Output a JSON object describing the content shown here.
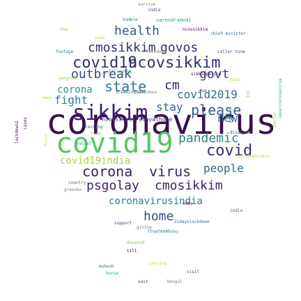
{
  "cloud": {
    "big": [
      {
        "t": "coronavirus",
        "c": "#3b0f4f"
      },
      {
        "t": "covid19",
        "c": "#56c667"
      },
      {
        "t": "sikkim",
        "c": "#3e1e6e"
      },
      {
        "t": "ncovsikkim",
        "c": "#31326f"
      },
      {
        "t": "covid19",
        "c": "#31326f"
      },
      {
        "t": "cmosikkim",
        "c": "#2f2f6b"
      },
      {
        "t": "govos",
        "c": "#3a2a72"
      },
      {
        "t": "health",
        "c": "#33588c"
      },
      {
        "t": "outbreak",
        "c": "#2f4b88"
      },
      {
        "t": "govt",
        "c": "#35437f"
      },
      {
        "t": "state",
        "c": "#2f7a8a"
      },
      {
        "t": "cm",
        "c": "#3a1f60"
      },
      {
        "t": "corona",
        "c": "#2c8c8a"
      },
      {
        "t": "covid2019",
        "c": "#326a8e"
      },
      {
        "t": "fight",
        "c": "#2b7f8f"
      },
      {
        "t": "please",
        "c": "#3a5a8c"
      },
      {
        "t": "stay",
        "c": "#37628f"
      },
      {
        "t": "new",
        "c": "#2f7b8e"
      },
      {
        "t": "pandemic",
        "c": "#2a8586"
      },
      {
        "t": "covid",
        "c": "#3a2d72"
      },
      {
        "t": "covid19india",
        "c": "#a9d241"
      },
      {
        "t": "corona",
        "c": "#3b245e"
      },
      {
        "t": "virus",
        "c": "#3a2670"
      },
      {
        "t": "people",
        "c": "#2e6b8e"
      },
      {
        "t": "psgolay",
        "c": "#3f1e6a"
      },
      {
        "t": "cmosikkim",
        "c": "#3e1e6a"
      },
      {
        "t": "coronavirusindia",
        "c": "#2c7e8e"
      },
      {
        "t": "home",
        "c": "#2f4d8a"
      },
      {
        "t": "ncovsikkim stayathome",
        "c": "#3a3a7a"
      }
    ],
    "small": [
      "survive",
      "india",
      "humble",
      "narendramodi",
      "tea",
      "ncovsikkim",
      "case",
      "chief minister",
      "lockdown",
      "caller tune",
      "footage",
      "following",
      "gangtok",
      "sikkimpolice",
      "mask",
      "breakingnews",
      "sikkimsa",
      "due",
      "testing",
      "relief",
      "fund",
      "cases",
      "first",
      "country",
      "greenko",
      "disaster",
      "public",
      "novelcoronavirus",
      "doctor",
      "lockdown2",
      "lockdownindia",
      "21dayslockdown",
      "giving",
      "support",
      "treatment",
      "today",
      "donated",
      "till",
      "serving",
      "east",
      "bengal",
      "visit",
      "mukesh",
      "horse",
      "tmc",
      "ndtv",
      "news",
      "india"
    ]
  }
}
